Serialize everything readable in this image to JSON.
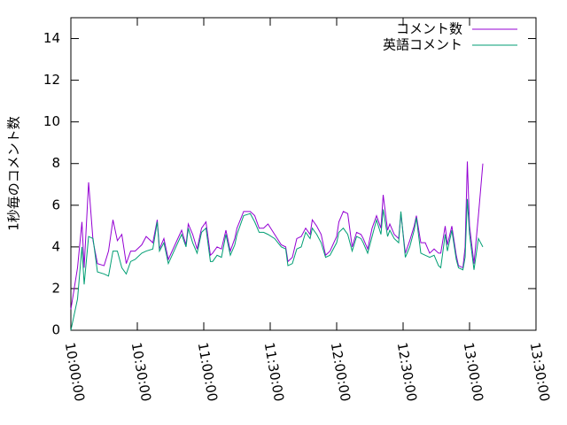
{
  "chart_data": {
    "type": "line",
    "ylabel": "1秒毎のコメント数",
    "x": [
      "10:00:00",
      "10:03:00",
      "10:05:00",
      "10:06:00",
      "10:08:00",
      "10:10:00",
      "10:12:00",
      "10:15:00",
      "10:17:00",
      "10:19:00",
      "10:21:00",
      "10:23:00",
      "10:25:00",
      "10:27:00",
      "10:29:00",
      "10:32:00",
      "10:34:00",
      "10:37:00",
      "10:39:00",
      "10:40:00",
      "10:42:00",
      "10:44:00",
      "10:47:00",
      "10:50:00",
      "10:52:00",
      "10:53:00",
      "10:55:00",
      "10:57:00",
      "10:59:00",
      "11:01:00",
      "11:03:00",
      "11:04:00",
      "11:06:00",
      "11:08:00",
      "11:10:00",
      "11:12:00",
      "11:14:00",
      "11:15:00",
      "11:18:00",
      "11:21:00",
      "11:23:00",
      "11:25:00",
      "11:27:00",
      "11:29:00",
      "11:32:00",
      "11:35:00",
      "11:37:00",
      "11:38:00",
      "11:40:00",
      "11:42:00",
      "11:44:00",
      "11:46:00",
      "11:48:00",
      "11:49:00",
      "11:51:00",
      "11:53:00",
      "11:55:00",
      "11:57:00",
      "12:00:00",
      "12:01:00",
      "12:03:00",
      "12:05:00",
      "12:07:00",
      "12:09:00",
      "12:11:00",
      "12:12:00",
      "12:14:00",
      "12:16:00",
      "12:18:00",
      "12:20:00",
      "12:21:00",
      "12:23:00",
      "12:24:00",
      "12:26:00",
      "12:28:00",
      "12:29:00",
      "12:31:00",
      "12:33:00",
      "12:35:00",
      "12:36:00",
      "12:38:00",
      "12:40:00",
      "12:42:00",
      "12:44:00",
      "12:46:00",
      "12:47:00",
      "12:49:00",
      "12:50:00",
      "12:52:00",
      "12:54:00",
      "12:55:00",
      "12:57:00",
      "12:58:00",
      "12:59:00",
      "13:00:00",
      "13:02:00",
      "13:04:00",
      "13:06:00"
    ],
    "series": [
      {
        "name": "コメント数",
        "color": "#9400d3",
        "values": [
          1.0,
          3.0,
          5.2,
          3.0,
          7.1,
          4.3,
          3.2,
          3.1,
          3.8,
          5.3,
          4.3,
          4.6,
          3.2,
          3.8,
          3.8,
          4.1,
          4.5,
          4.2,
          5.3,
          3.9,
          4.4,
          3.4,
          4.1,
          4.8,
          4.1,
          5.1,
          4.6,
          3.9,
          4.9,
          5.2,
          3.6,
          3.7,
          4.0,
          3.9,
          4.8,
          3.8,
          4.4,
          4.9,
          5.7,
          5.7,
          5.5,
          4.9,
          4.9,
          5.1,
          4.6,
          4.1,
          4.0,
          3.3,
          3.5,
          4.4,
          4.5,
          4.9,
          4.6,
          5.3,
          5.0,
          4.6,
          3.6,
          3.8,
          4.5,
          5.2,
          5.7,
          5.6,
          4.0,
          4.7,
          4.6,
          4.4,
          3.9,
          4.9,
          5.5,
          4.9,
          6.5,
          4.8,
          5.1,
          4.6,
          4.4,
          5.6,
          3.7,
          4.3,
          5.0,
          5.5,
          4.2,
          4.2,
          3.7,
          3.9,
          3.7,
          3.7,
          5.0,
          4.1,
          5.0,
          3.6,
          3.1,
          3.0,
          4.0,
          8.1,
          5.0,
          3.2,
          5.5,
          8.0
        ]
      },
      {
        "name": "英語コメント",
        "color": "#009e73",
        "values": [
          0.0,
          1.5,
          4.0,
          2.2,
          4.5,
          4.4,
          2.8,
          2.7,
          2.6,
          3.8,
          3.8,
          3.0,
          2.7,
          3.3,
          3.4,
          3.7,
          3.8,
          3.9,
          5.2,
          3.8,
          4.2,
          3.2,
          3.9,
          4.6,
          4.0,
          4.9,
          4.2,
          3.7,
          4.7,
          4.9,
          3.3,
          3.3,
          3.6,
          3.5,
          4.6,
          3.6,
          4.1,
          4.6,
          5.5,
          5.6,
          5.2,
          4.7,
          4.7,
          4.6,
          4.4,
          4.0,
          3.9,
          3.1,
          3.2,
          3.9,
          4.0,
          4.7,
          4.4,
          4.9,
          4.6,
          4.2,
          3.5,
          3.6,
          4.2,
          4.7,
          4.9,
          4.6,
          3.8,
          4.5,
          4.4,
          4.2,
          3.7,
          4.5,
          5.3,
          4.6,
          5.8,
          4.5,
          4.8,
          4.4,
          4.2,
          5.7,
          3.5,
          4.0,
          4.8,
          5.4,
          3.7,
          3.6,
          3.5,
          3.6,
          3.1,
          3.0,
          4.6,
          3.8,
          4.8,
          3.4,
          3.0,
          2.9,
          3.5,
          6.3,
          4.6,
          2.9,
          4.4,
          4.0
        ]
      }
    ],
    "xlim": [
      "10:00:00",
      "13:30:00"
    ],
    "xticks": [
      "10:00:00",
      "10:30:00",
      "11:00:00",
      "11:30:00",
      "12:00:00",
      "12:30:00",
      "13:00:00",
      "13:30:00"
    ],
    "ylim": [
      0,
      15
    ],
    "yticks": [
      0,
      2,
      4,
      6,
      8,
      10,
      12,
      14
    ],
    "legend": "top-right"
  }
}
